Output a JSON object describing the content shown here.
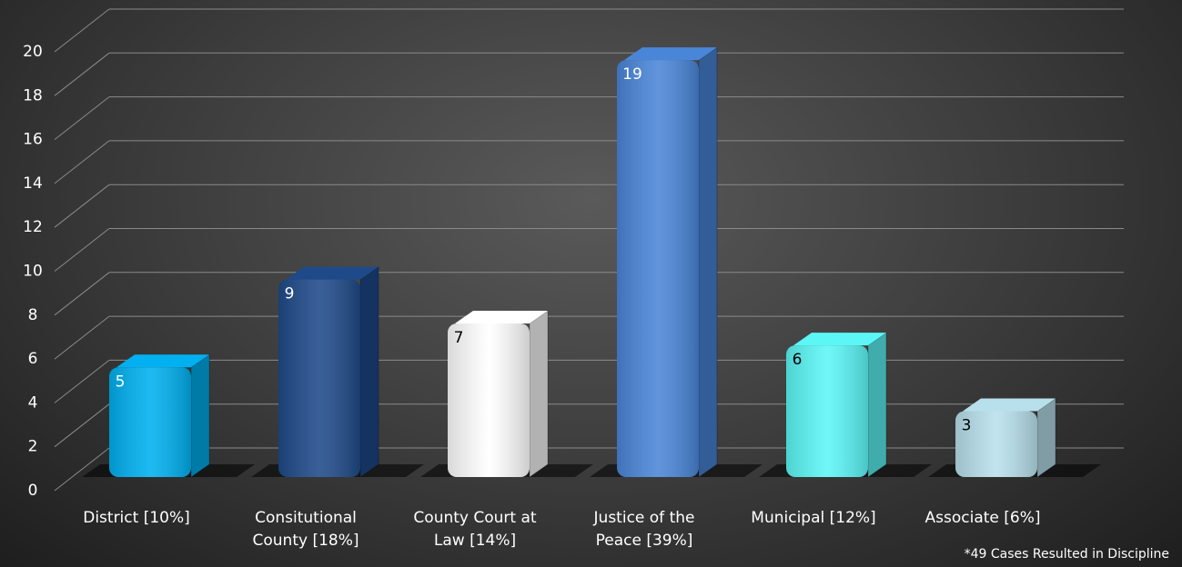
{
  "chart_data": {
    "type": "bar",
    "categories": [
      "District [10%]",
      "Consitutional County [18%]",
      "County Court at Law [14%]",
      "Justice of the Peace [39%]",
      "Municipal [12%]",
      "Associate [6%]"
    ],
    "values": [
      5,
      9,
      7,
      19,
      6,
      3
    ],
    "colors": [
      "#00b0f0",
      "#1f4a8a",
      "#ffffff",
      "#4a86d8",
      "#5cf6f6",
      "#b8e0ec"
    ],
    "ylim": [
      0,
      20
    ],
    "yticks": [
      0,
      2,
      4,
      6,
      8,
      10,
      12,
      14,
      16,
      18,
      20
    ],
    "grid": true,
    "annotation": "*49 Cases Resulted in Discipline"
  }
}
